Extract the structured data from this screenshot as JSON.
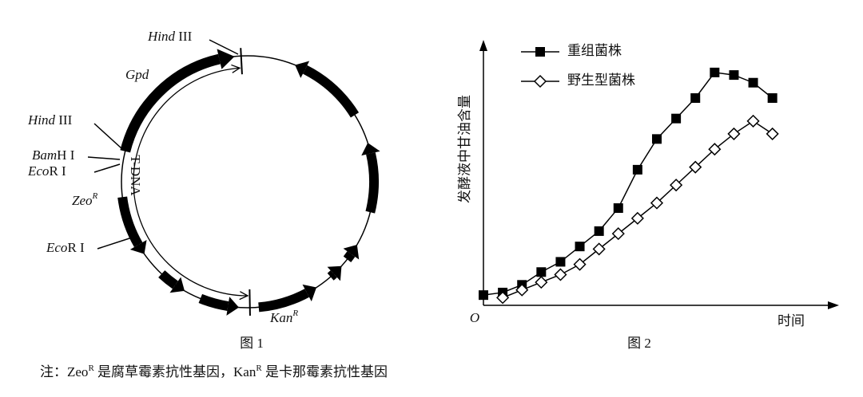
{
  "figure1": {
    "caption": "图 1",
    "labels": {
      "hind_top": {
        "italic": "Hind",
        "text": " III"
      },
      "gpd": {
        "italic": "Gpd"
      },
      "hind_left": {
        "italic": "Hind",
        "text": " III"
      },
      "bamh": {
        "italic": "Bam",
        "text": "H I"
      },
      "ecor_upper": {
        "italic": "Eco",
        "text": "R I"
      },
      "zeo": {
        "italic": "Zeo",
        "sup": "R"
      },
      "ecor_lower": {
        "italic": "Eco",
        "text": "R I"
      },
      "kan": {
        "italic": "Kan",
        "sup": "R"
      },
      "tdna": "T-DNA"
    }
  },
  "chart_data": {
    "type": "line",
    "caption": "图 2",
    "y_label": "发酵液中甘油含量",
    "x_label": "时间",
    "origin_label": "O",
    "xlim": [
      0,
      18
    ],
    "ylim": [
      0,
      100
    ],
    "legend": "top-left",
    "series": [
      {
        "name": "重组菌株",
        "marker": "filled-square",
        "color": "#000000",
        "x": [
          0,
          1,
          2,
          3,
          4,
          5,
          6,
          7,
          8,
          9,
          10,
          11,
          12,
          13,
          14,
          15
        ],
        "values": [
          4,
          5,
          8,
          13,
          17,
          23,
          29,
          38,
          53,
          65,
          73,
          81,
          91,
          90,
          87,
          81
        ]
      },
      {
        "name": "野生型菌株",
        "marker": "open-diamond",
        "color": "#000000",
        "x": [
          1,
          2,
          3,
          4,
          5,
          6,
          7,
          8,
          9,
          10,
          11,
          12,
          13,
          14,
          15
        ],
        "values": [
          3,
          6,
          9,
          12,
          16,
          22,
          28,
          34,
          40,
          47,
          54,
          61,
          67,
          72,
          67
        ]
      }
    ]
  },
  "note": {
    "a": "注：Zeo",
    "sup1": "R",
    "b": " 是腐草霉素抗性基因，Kan",
    "sup2": "R",
    "c": " 是卡那霉素抗性基因"
  }
}
